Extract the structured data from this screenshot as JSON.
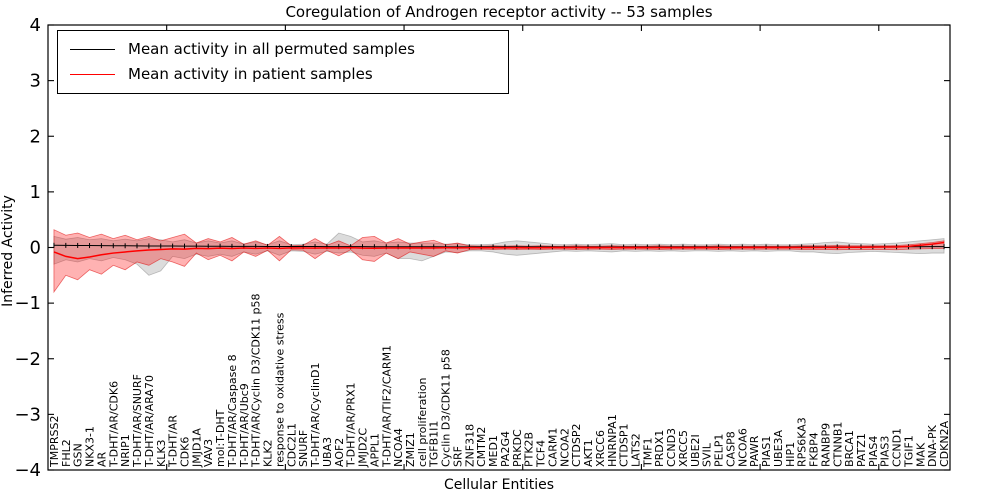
{
  "figure": {
    "title": "Coregulation of Androgen receptor activity -- 53 samples",
    "xlabel": "Cellular Entities",
    "ylabel": "Inferred Activity",
    "legend": [
      {
        "label": "Mean activity in all permuted samples",
        "color": "#000000"
      },
      {
        "label": "Mean activity in patient samples",
        "color": "#ff0000"
      }
    ]
  },
  "chart_data": {
    "type": "line",
    "title": "Coregulation of Androgen receptor activity -- 53 samples",
    "xlabel": "Cellular Entities",
    "ylabel": "Inferred Activity",
    "ylim": [
      -4,
      4
    ],
    "yticks": [
      -4,
      -3,
      -2,
      -1,
      0,
      1,
      2,
      3,
      4
    ],
    "ytick_labels": [
      "−4",
      "−3",
      "−2",
      "−1",
      "0",
      "1",
      "2",
      "3",
      "4"
    ],
    "xticks": [
      10,
      20,
      30,
      40,
      50,
      60,
      70
    ],
    "grid": false,
    "legend_position": "upper left",
    "categories": [
      "TMPRSS2",
      "FHL2",
      "GSN",
      "NKX3-1",
      "AR",
      "T-DHT/AR/CDK6",
      "NRIP1",
      "T-DHT/AR/SNURF",
      "T-DHT/AR/ARA70",
      "KLK3",
      "T-DHT/AR",
      "CDK6",
      "JMJD1A",
      "VAV3",
      "mol:T-DHT",
      "T-DHT/AR/Caspase 8",
      "T-DHT/AR/Ubc9",
      "T-DHT/AR/Cyclin D3/CDK11 p58",
      "KLK2",
      "response to oxidative stress",
      "CDC2L1",
      "SNURF",
      "T-DHT/AR/CyclinD1",
      "UBA3",
      "AOF2",
      "T-DHT/AR/PRX1",
      "JMJD2C",
      "APPL1",
      "T-DHT/AR/TIF2/CARM1",
      "NCOA4",
      "ZMIZ1",
      "cell proliferation",
      "TGFB1I1",
      "Cyclin D3/CDK11 p58",
      "SRF",
      "ZNF318",
      "CMTM2",
      "MED1",
      "PA2G4",
      "PRKDC",
      "PTK2B",
      "TCF4",
      "CARM1",
      "NCOA2",
      "CTDSP2",
      "AKT1",
      "XRCC6",
      "HNRNPA1",
      "CTDSP1",
      "LATS2",
      "TMF1",
      "PRDX1",
      "CCND3",
      "XRCC5",
      "UBE2I",
      "SVIL",
      "PELP1",
      "CASP8",
      "NCOA6",
      "PAWR",
      "PIAS1",
      "UBE3A",
      "HIP1",
      "RPS6KA3",
      "FKBP4",
      "RANBP9",
      "CTNNB1",
      "BRCA1",
      "PATZ1",
      "PIAS4",
      "PIAS3",
      "CCND1",
      "TGIF1",
      "MAK",
      "DNA-PK",
      "CDKN2A"
    ],
    "series": [
      {
        "name": "Mean activity in all permuted samples",
        "color": "#000000",
        "marker": "|",
        "values": [
          0.04,
          0.038,
          0.037,
          0.035,
          0.034,
          0.032,
          0.031,
          0.03,
          0.028,
          0.027,
          0.026,
          0.025,
          0.024,
          0.023,
          0.022,
          0.021,
          0.02,
          0.02,
          0.019,
          0.018,
          0.018,
          0.017,
          0.017,
          0.016,
          0.016,
          0.015,
          0.015,
          0.014,
          0.014,
          0.014,
          0.013,
          0.013,
          0.013,
          0.012,
          0.012,
          0.012,
          0.012,
          0.011,
          0.011,
          0.011,
          0.011,
          0.011,
          0.011,
          0.01,
          0.01,
          0.01,
          0.01,
          0.01,
          0.01,
          0.01,
          0.01,
          0.01,
          0.01,
          0.01,
          0.01,
          0.01,
          0.01,
          0.01,
          0.01,
          0.01,
          0.01,
          0.01,
          0.01,
          0.011,
          0.011,
          0.011,
          0.012,
          0.012,
          0.012,
          0.013,
          0.013,
          0.013,
          0.014,
          0.014,
          0.015,
          0.015
        ]
      },
      {
        "name": "Mean activity in patient samples",
        "color": "#ff0000",
        "marker": "none",
        "values": [
          -0.08,
          -0.16,
          -0.2,
          -0.17,
          -0.13,
          -0.1,
          -0.08,
          -0.06,
          -0.045,
          -0.035,
          -0.025,
          -0.03,
          -0.015,
          -0.02,
          -0.012,
          -0.018,
          -0.01,
          -0.015,
          -0.008,
          -0.015,
          -0.006,
          -0.008,
          -0.012,
          -0.006,
          -0.01,
          -0.005,
          -0.012,
          -0.014,
          -0.008,
          -0.01,
          -0.006,
          -0.008,
          -0.008,
          -0.005,
          -0.006,
          -0.004,
          -0.004,
          -0.004,
          -0.004,
          -0.005,
          -0.004,
          -0.004,
          -0.003,
          -0.003,
          -0.003,
          -0.003,
          -0.003,
          -0.003,
          -0.003,
          -0.003,
          -0.002,
          -0.002,
          -0.002,
          -0.002,
          -0.002,
          -0.002,
          -0.002,
          -0.002,
          -0.001,
          -0.001,
          -0.001,
          -0.001,
          0,
          0,
          0,
          0.002,
          0.003,
          0.004,
          0.005,
          0.006,
          0.008,
          0.01,
          0.02,
          0.04,
          0.06,
          0.09
        ]
      }
    ],
    "bands": [
      {
        "name": "permuted-samples-range",
        "fill": "rgba(128,128,128,0.28)",
        "stroke": "rgba(120,120,120,0.45)",
        "hi": [
          0.2,
          0.15,
          0.18,
          0.14,
          0.16,
          0.12,
          0.15,
          0.12,
          0.16,
          0.14,
          0.1,
          0.14,
          0.08,
          0.12,
          0.08,
          0.12,
          0.06,
          0.1,
          0.05,
          0.12,
          0.05,
          0.06,
          0.1,
          0.06,
          0.26,
          0.2,
          0.1,
          0.12,
          0.08,
          0.1,
          0.08,
          0.08,
          0.08,
          0.06,
          0.07,
          0.05,
          0.05,
          0.06,
          0.1,
          0.12,
          0.1,
          0.08,
          0.06,
          0.05,
          0.06,
          0.05,
          0.06,
          0.07,
          0.05,
          0.06,
          0.05,
          0.06,
          0.05,
          0.06,
          0.05,
          0.05,
          0.06,
          0.05,
          0.06,
          0.05,
          0.06,
          0.05,
          0.05,
          0.06,
          0.07,
          0.09,
          0.1,
          0.08,
          0.07,
          0.06,
          0.07,
          0.08,
          0.1,
          0.12,
          0.14,
          0.16
        ],
        "lo": [
          -0.3,
          -0.22,
          -0.26,
          -0.2,
          -0.24,
          -0.18,
          -0.22,
          -0.3,
          -0.5,
          -0.42,
          -0.16,
          -0.2,
          -0.12,
          -0.16,
          -0.12,
          -0.16,
          -0.08,
          -0.12,
          -0.06,
          -0.14,
          -0.06,
          -0.07,
          -0.12,
          -0.07,
          -0.1,
          -0.08,
          -0.14,
          -0.16,
          -0.1,
          -0.2,
          -0.2,
          -0.24,
          -0.16,
          -0.08,
          -0.09,
          -0.06,
          -0.06,
          -0.08,
          -0.12,
          -0.14,
          -0.12,
          -0.1,
          -0.08,
          -0.06,
          -0.07,
          -0.06,
          -0.07,
          -0.08,
          -0.06,
          -0.07,
          -0.06,
          -0.07,
          -0.06,
          -0.07,
          -0.06,
          -0.06,
          -0.07,
          -0.06,
          -0.07,
          -0.06,
          -0.07,
          -0.06,
          -0.06,
          -0.08,
          -0.08,
          -0.1,
          -0.11,
          -0.09,
          -0.08,
          -0.07,
          -0.08,
          -0.09,
          -0.1,
          -0.11,
          -0.1,
          -0.1
        ]
      },
      {
        "name": "patient-samples-range",
        "fill": "rgba(255,0,0,0.3)",
        "stroke": "rgba(220,0,0,0.55)",
        "hi": [
          0.32,
          0.22,
          0.26,
          0.18,
          0.24,
          0.16,
          0.22,
          0.14,
          0.2,
          0.12,
          0.18,
          0.24,
          0.08,
          0.16,
          0.1,
          0.18,
          0.06,
          0.12,
          0.04,
          0.2,
          0.03,
          0.04,
          0.16,
          0.04,
          0.12,
          0.03,
          0.18,
          0.2,
          0.08,
          0.16,
          0.06,
          0.1,
          0.13,
          0.05,
          0.08,
          0.03,
          0.025,
          0.03,
          0.025,
          0.03,
          0.025,
          0.03,
          0.025,
          0.025,
          0.03,
          0.025,
          0.025,
          0.03,
          0.025,
          0.025,
          0.025,
          0.03,
          0.025,
          0.025,
          0.025,
          0.025,
          0.03,
          0.025,
          0.025,
          0.025,
          0.025,
          0.025,
          0.025,
          0.03,
          0.03,
          0.03,
          0.035,
          0.03,
          0.03,
          0.03,
          0.03,
          0.035,
          0.05,
          0.07,
          0.09,
          0.12
        ],
        "lo": [
          -0.8,
          -0.5,
          -0.58,
          -0.4,
          -0.48,
          -0.32,
          -0.4,
          -0.26,
          -0.32,
          -0.2,
          -0.26,
          -0.34,
          -0.1,
          -0.22,
          -0.14,
          -0.24,
          -0.08,
          -0.16,
          -0.05,
          -0.24,
          -0.04,
          -0.05,
          -0.2,
          -0.05,
          -0.15,
          -0.04,
          -0.22,
          -0.25,
          -0.1,
          -0.2,
          -0.08,
          -0.12,
          -0.16,
          -0.06,
          -0.1,
          -0.04,
          -0.03,
          -0.035,
          -0.03,
          -0.035,
          -0.03,
          -0.035,
          -0.03,
          -0.03,
          -0.035,
          -0.03,
          -0.03,
          -0.035,
          -0.03,
          -0.03,
          -0.03,
          -0.035,
          -0.03,
          -0.03,
          -0.03,
          -0.03,
          -0.035,
          -0.03,
          -0.03,
          -0.03,
          -0.03,
          -0.03,
          -0.03,
          -0.035,
          -0.035,
          -0.035,
          -0.04,
          -0.035,
          -0.035,
          -0.035,
          -0.035,
          -0.04,
          -0.03,
          -0.025,
          -0.02,
          -0.015
        ]
      }
    ]
  }
}
